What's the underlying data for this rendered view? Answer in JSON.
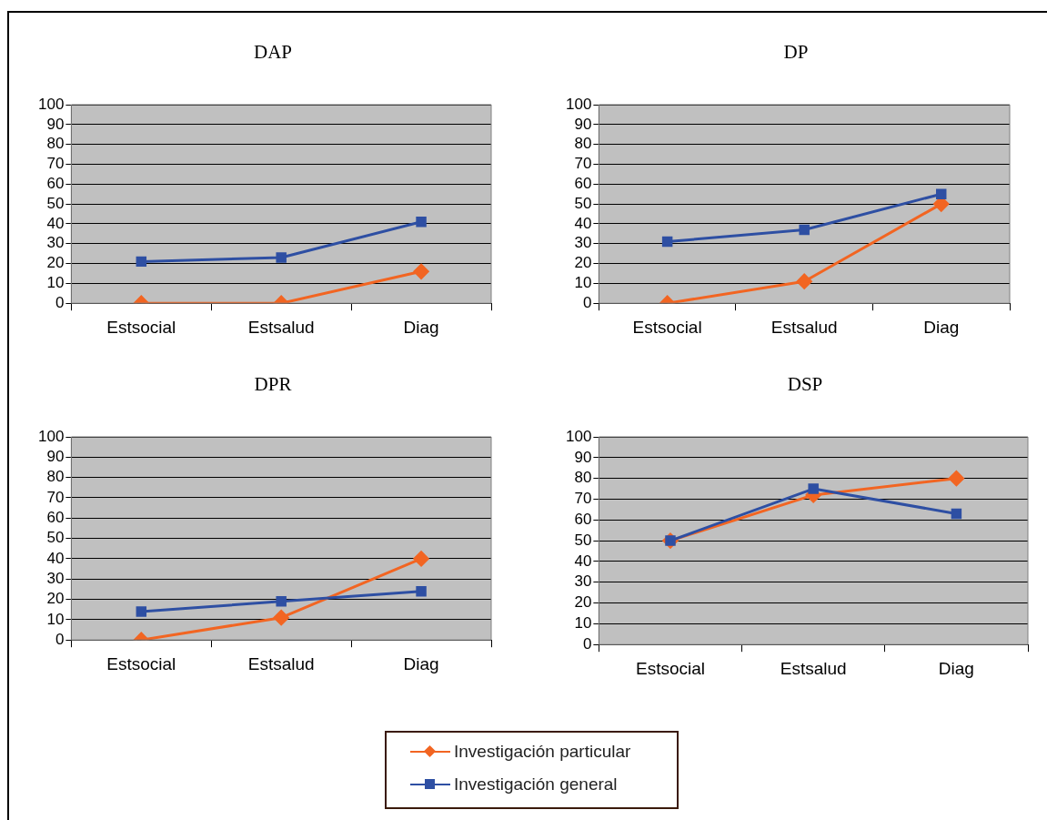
{
  "chart_data": [
    {
      "type": "line",
      "title": "DAP",
      "categories": [
        "Estsocial",
        "Estsalud",
        "Diag"
      ],
      "ylim": [
        0,
        100
      ],
      "yticks": [
        0,
        10,
        20,
        30,
        40,
        50,
        60,
        70,
        80,
        90,
        100
      ],
      "grid": "y",
      "legend": "bottom",
      "series": [
        {
          "name": "Investigación particular",
          "color": "#f26522",
          "marker": "diamond",
          "values": [
            0,
            0,
            16
          ]
        },
        {
          "name": "Investigación general",
          "color": "#2e4fa3",
          "marker": "square",
          "values": [
            21,
            23,
            41
          ]
        }
      ]
    },
    {
      "type": "line",
      "title": "DP",
      "categories": [
        "Estsocial",
        "Estsalud",
        "Diag"
      ],
      "ylim": [
        0,
        100
      ],
      "yticks": [
        0,
        10,
        20,
        30,
        40,
        50,
        60,
        70,
        80,
        90,
        100
      ],
      "grid": "y",
      "legend": "bottom",
      "series": [
        {
          "name": "Investigación particular",
          "color": "#f26522",
          "marker": "diamond",
          "values": [
            0,
            11,
            50
          ]
        },
        {
          "name": "Investigación general",
          "color": "#2e4fa3",
          "marker": "square",
          "values": [
            31,
            37,
            55
          ]
        }
      ]
    },
    {
      "type": "line",
      "title": "DPR",
      "categories": [
        "Estsocial",
        "Estsalud",
        "Diag"
      ],
      "ylim": [
        0,
        100
      ],
      "yticks": [
        0,
        10,
        20,
        30,
        40,
        50,
        60,
        70,
        80,
        90,
        100
      ],
      "grid": "y",
      "legend": "bottom",
      "series": [
        {
          "name": "Investigación particular",
          "color": "#f26522",
          "marker": "diamond",
          "values": [
            0,
            11,
            40
          ]
        },
        {
          "name": "Investigación general",
          "color": "#2e4fa3",
          "marker": "square",
          "values": [
            14,
            19,
            24
          ]
        }
      ]
    },
    {
      "type": "line",
      "title": "DSP",
      "categories": [
        "Estsocial",
        "Estsalud",
        "Diag"
      ],
      "ylim": [
        0,
        100
      ],
      "yticks": [
        0,
        10,
        20,
        30,
        40,
        50,
        60,
        70,
        80,
        90,
        100
      ],
      "grid": "y",
      "legend": "bottom",
      "series": [
        {
          "name": "Investigación particular",
          "color": "#f26522",
          "marker": "diamond",
          "values": [
            50,
            72,
            80
          ]
        },
        {
          "name": "Investigación general",
          "color": "#2e4fa3",
          "marker": "square",
          "values": [
            50,
            75,
            63
          ]
        }
      ]
    }
  ]
}
